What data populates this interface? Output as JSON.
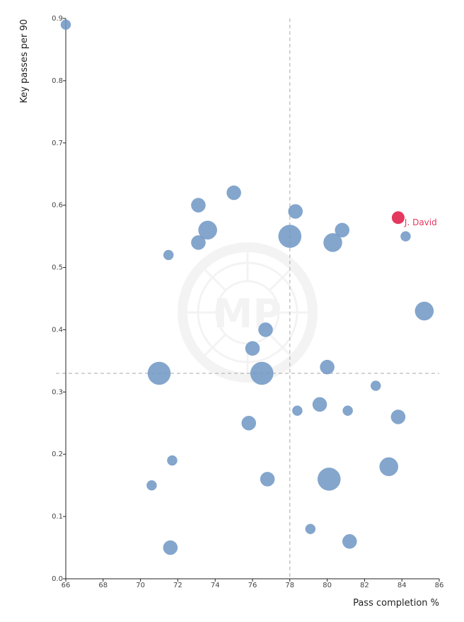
{
  "chart_data": {
    "type": "scatter",
    "title": "",
    "xlabel": "Pass completion %",
    "ylabel": "Key passes per 90",
    "xlim": [
      66,
      86
    ],
    "ylim": [
      0,
      0.9
    ],
    "x_ticks": [
      "66",
      "68",
      "70",
      "72",
      "74",
      "76",
      "78",
      "80",
      "82",
      "84",
      "86"
    ],
    "y_ticks": [
      "0.0",
      "0.1",
      "0.2",
      "0.3",
      "0.4",
      "0.5",
      "0.6",
      "0.7",
      "0.8",
      "0.9"
    ],
    "reference_lines": {
      "x": 78,
      "y": 0.33
    },
    "grid": false,
    "watermark": "MP",
    "colors": {
      "points": "#6f97c4",
      "highlight": "#e4385e",
      "reference": "#a8a8a8",
      "axis": "#222222"
    },
    "points": [
      {
        "x": 66.0,
        "y": 0.89,
        "size": 1
      },
      {
        "x": 75.0,
        "y": 0.62,
        "size": 2
      },
      {
        "x": 73.1,
        "y": 0.6,
        "size": 2
      },
      {
        "x": 78.3,
        "y": 0.59,
        "size": 2
      },
      {
        "x": 73.6,
        "y": 0.56,
        "size": 3
      },
      {
        "x": 80.8,
        "y": 0.56,
        "size": 2
      },
      {
        "x": 78.0,
        "y": 0.55,
        "size": 4
      },
      {
        "x": 73.1,
        "y": 0.54,
        "size": 2
      },
      {
        "x": 80.3,
        "y": 0.54,
        "size": 3
      },
      {
        "x": 84.2,
        "y": 0.55,
        "size": 1
      },
      {
        "x": 71.5,
        "y": 0.52,
        "size": 1
      },
      {
        "x": 85.2,
        "y": 0.43,
        "size": 3
      },
      {
        "x": 76.7,
        "y": 0.4,
        "size": 2
      },
      {
        "x": 76.0,
        "y": 0.37,
        "size": 2
      },
      {
        "x": 71.0,
        "y": 0.33,
        "size": 4
      },
      {
        "x": 76.5,
        "y": 0.33,
        "size": 4
      },
      {
        "x": 80.0,
        "y": 0.34,
        "size": 2
      },
      {
        "x": 82.6,
        "y": 0.31,
        "size": 1
      },
      {
        "x": 79.6,
        "y": 0.28,
        "size": 2
      },
      {
        "x": 78.4,
        "y": 0.27,
        "size": 1
      },
      {
        "x": 81.1,
        "y": 0.27,
        "size": 1
      },
      {
        "x": 83.8,
        "y": 0.26,
        "size": 2
      },
      {
        "x": 75.8,
        "y": 0.25,
        "size": 2
      },
      {
        "x": 71.7,
        "y": 0.19,
        "size": 1
      },
      {
        "x": 83.3,
        "y": 0.18,
        "size": 3
      },
      {
        "x": 70.6,
        "y": 0.15,
        "size": 1
      },
      {
        "x": 76.8,
        "y": 0.16,
        "size": 2
      },
      {
        "x": 80.1,
        "y": 0.16,
        "size": 4
      },
      {
        "x": 79.1,
        "y": 0.08,
        "size": 1
      },
      {
        "x": 81.2,
        "y": 0.06,
        "size": 2
      },
      {
        "x": 71.6,
        "y": 0.05,
        "size": 2
      }
    ],
    "highlight": {
      "label": "J. David",
      "x": 83.8,
      "y": 0.58,
      "size": 2
    }
  }
}
